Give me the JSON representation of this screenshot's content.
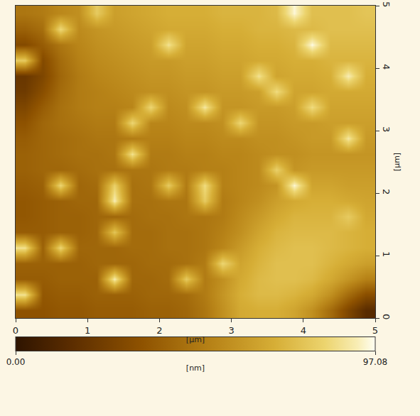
{
  "chart_data": {
    "type": "heatmap",
    "xlabel": "[μm]",
    "ylabel": "[μm]",
    "xlim": [
      0,
      5
    ],
    "ylim": [
      0,
      5
    ],
    "xticks": [
      0,
      1,
      2,
      3,
      4,
      5
    ],
    "yticks": [
      0,
      1,
      2,
      3,
      4,
      5
    ],
    "x": [
      0.125,
      0.375,
      0.625,
      0.875,
      1.125,
      1.375,
      1.625,
      1.875,
      2.125,
      2.375,
      2.625,
      2.875,
      3.125,
      3.375,
      3.625,
      3.875,
      4.125,
      4.375,
      4.625,
      4.875
    ],
    "y": [
      0.125,
      0.375,
      0.625,
      0.875,
      1.125,
      1.375,
      1.625,
      1.875,
      2.125,
      2.375,
      2.625,
      2.875,
      3.125,
      3.375,
      3.625,
      3.875,
      4.125,
      4.375,
      4.625,
      4.875
    ],
    "cells": [
      [
        34,
        34,
        36,
        36,
        38,
        38,
        38,
        40,
        40,
        42,
        48,
        58,
        68,
        70,
        70,
        66,
        58,
        44,
        28,
        14
      ],
      [
        88,
        36,
        38,
        38,
        40,
        40,
        40,
        42,
        42,
        44,
        50,
        60,
        70,
        74,
        74,
        72,
        68,
        58,
        44,
        32
      ],
      [
        38,
        38,
        40,
        40,
        40,
        92,
        42,
        42,
        44,
        80,
        50,
        58,
        68,
        74,
        76,
        76,
        74,
        68,
        60,
        52
      ],
      [
        40,
        40,
        40,
        40,
        42,
        42,
        42,
        44,
        44,
        46,
        50,
        84,
        66,
        72,
        76,
        76,
        76,
        72,
        68,
        64
      ],
      [
        88,
        40,
        84,
        42,
        42,
        42,
        44,
        44,
        46,
        46,
        48,
        54,
        62,
        70,
        74,
        76,
        76,
        74,
        72,
        70
      ],
      [
        38,
        38,
        40,
        40,
        42,
        78,
        44,
        44,
        46,
        46,
        48,
        52,
        58,
        66,
        72,
        74,
        74,
        74,
        72,
        70
      ],
      [
        36,
        38,
        40,
        40,
        42,
        42,
        44,
        46,
        46,
        48,
        48,
        50,
        56,
        62,
        68,
        72,
        72,
        72,
        80,
        68
      ],
      [
        36,
        38,
        40,
        42,
        42,
        92,
        46,
        46,
        48,
        48,
        80,
        50,
        54,
        58,
        64,
        68,
        70,
        70,
        68,
        66
      ],
      [
        38,
        40,
        84,
        42,
        44,
        82,
        46,
        48,
        80,
        50,
        86,
        52,
        54,
        56,
        60,
        95,
        66,
        66,
        64,
        64
      ],
      [
        40,
        42,
        42,
        44,
        46,
        46,
        48,
        48,
        50,
        50,
        52,
        52,
        54,
        56,
        82,
        60,
        62,
        62,
        62,
        62
      ],
      [
        40,
        42,
        44,
        46,
        46,
        48,
        88,
        50,
        50,
        52,
        52,
        54,
        54,
        56,
        58,
        58,
        60,
        60,
        60,
        60
      ],
      [
        38,
        42,
        44,
        46,
        48,
        48,
        50,
        52,
        52,
        54,
        54,
        56,
        56,
        58,
        58,
        60,
        62,
        62,
        90,
        62
      ],
      [
        34,
        42,
        46,
        48,
        50,
        50,
        84,
        54,
        54,
        56,
        56,
        58,
        84,
        60,
        60,
        62,
        62,
        64,
        64,
        64
      ],
      [
        28,
        38,
        46,
        50,
        52,
        52,
        54,
        84,
        56,
        58,
        90,
        60,
        60,
        62,
        62,
        64,
        86,
        66,
        66,
        66
      ],
      [
        22,
        32,
        44,
        50,
        52,
        54,
        56,
        58,
        58,
        60,
        60,
        62,
        62,
        64,
        86,
        66,
        66,
        68,
        68,
        68
      ],
      [
        20,
        28,
        42,
        50,
        54,
        56,
        58,
        60,
        60,
        62,
        62,
        64,
        64,
        88,
        66,
        68,
        68,
        70,
        92,
        70
      ],
      [
        80,
        30,
        44,
        52,
        56,
        58,
        60,
        62,
        62,
        64,
        64,
        66,
        66,
        68,
        68,
        70,
        70,
        72,
        72,
        72
      ],
      [
        30,
        38,
        48,
        54,
        58,
        60,
        62,
        64,
        88,
        66,
        66,
        68,
        68,
        70,
        70,
        72,
        96,
        74,
        74,
        74
      ],
      [
        40,
        45,
        85,
        56,
        60,
        62,
        64,
        66,
        68,
        68,
        68,
        70,
        70,
        72,
        72,
        74,
        74,
        76,
        76,
        76
      ],
      [
        48,
        50,
        55,
        58,
        80,
        64,
        66,
        68,
        70,
        70,
        70,
        72,
        72,
        72,
        74,
        95,
        76,
        76,
        76,
        78
      ]
    ],
    "colorbar_range": [
      0,
      97.08
    ],
    "colorbar_ticks": [
      {
        "value": 0,
        "label": "0.00"
      },
      {
        "value": 97.08,
        "label": "97.08"
      }
    ],
    "colorbar_title": "[nm]"
  }
}
